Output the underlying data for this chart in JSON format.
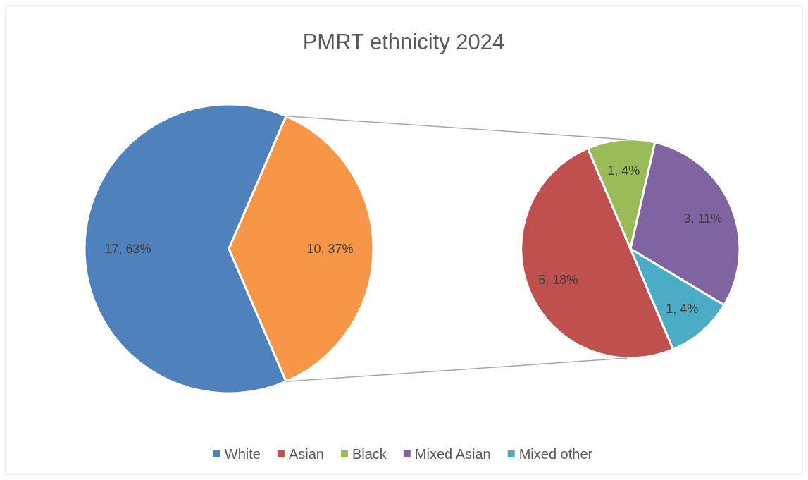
{
  "chart_data": [
    {
      "type": "pie",
      "title": "PMRT ethnicity 2024",
      "categories": [
        "White",
        null
      ],
      "values": [
        17,
        10
      ],
      "colors": [
        "#4f81bd",
        "#f79646"
      ],
      "value_labels": [
        "17, 63%",
        "10, 37%"
      ],
      "legend": "bottom"
    },
    {
      "type": "pie",
      "categories": [
        "Asian",
        "Black",
        "Mixed Asian",
        "Mixed other"
      ],
      "values": [
        5,
        1,
        3,
        1
      ],
      "colors": [
        "#c0504d",
        "#9bbb59",
        "#8064a2",
        "#4bacc6"
      ],
      "value_labels": [
        "5, 18%",
        "1, 4%",
        "3, 11%",
        "1, 4%"
      ],
      "legend": "bottom"
    }
  ]
}
